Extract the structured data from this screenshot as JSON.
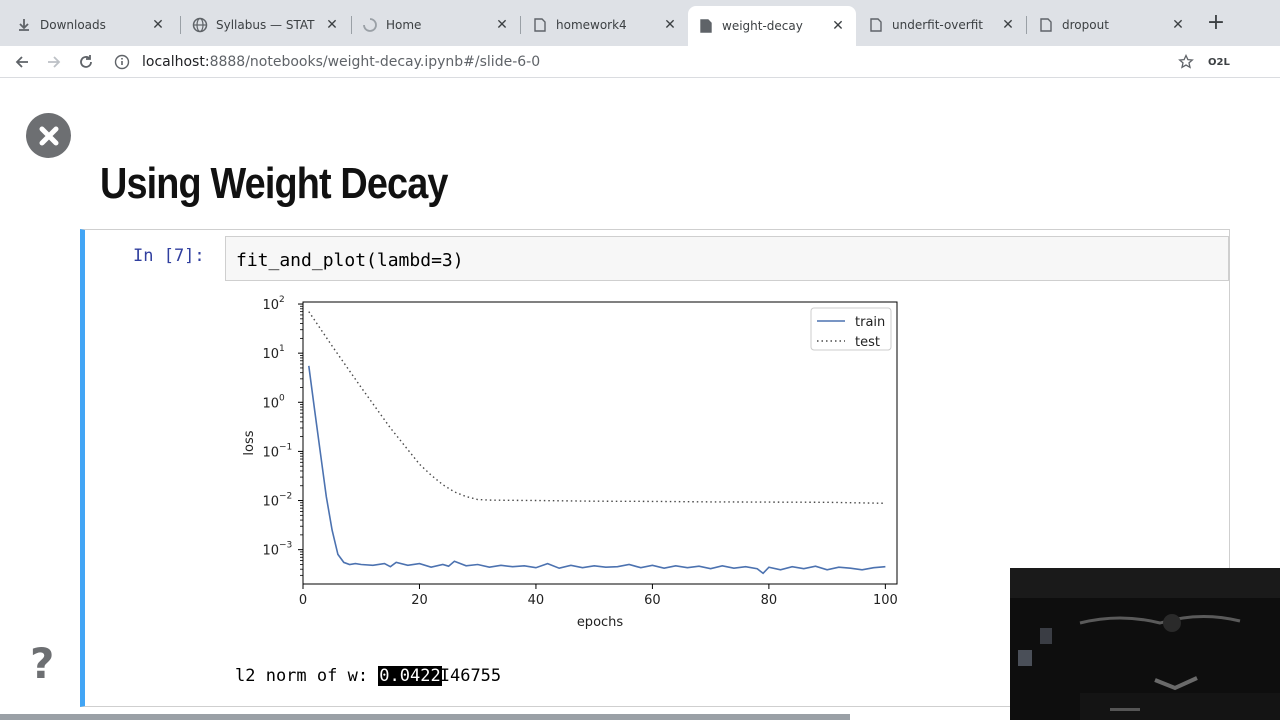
{
  "browser": {
    "tabs": [
      {
        "title": "Downloads",
        "icon": "download-icon",
        "active": false
      },
      {
        "title": "Syllabus — STAT",
        "icon": "globe-icon",
        "active": false
      },
      {
        "title": "Home",
        "icon": "loading-icon",
        "active": false
      },
      {
        "title": "homework4",
        "icon": "notebook-icon",
        "active": false
      },
      {
        "title": "weight-decay",
        "icon": "notebook-icon",
        "active": true
      },
      {
        "title": "underfit-overfit",
        "icon": "notebook-icon",
        "active": false
      },
      {
        "title": "dropout",
        "icon": "notebook-icon",
        "active": false
      }
    ],
    "url_host": "localhost:",
    "url_path": "8888/notebooks/weight-decay.ipynb#/slide-6-0",
    "extension_label": "O2L"
  },
  "slide": {
    "title": "Using Weight Decay",
    "prompt": "In [7]:",
    "code": "fit_and_plot(lambd=3)",
    "output_prefix": "l2 norm of w: ",
    "output_selected": "0.0422",
    "output_rest": "46755",
    "output_cursor": "I"
  },
  "chart_data": {
    "type": "line",
    "xlabel": "epochs",
    "ylabel": "loss",
    "yscale": "log",
    "xlim": [
      0,
      102
    ],
    "ylim": [
      0.0002,
      110
    ],
    "xticks": [
      0,
      20,
      40,
      60,
      80,
      100
    ],
    "yticks": [
      0.001,
      0.01,
      0.1,
      1,
      10,
      100
    ],
    "ytick_labels": [
      [
        "10",
        "−3"
      ],
      [
        "10",
        "−2"
      ],
      [
        "10",
        "−1"
      ],
      [
        "10",
        "0"
      ],
      [
        "10",
        "1"
      ],
      [
        "10",
        "2"
      ]
    ],
    "legend_position": "top-right",
    "series": [
      {
        "name": "train",
        "style": "solid",
        "color": "#4c72b0",
        "x": [
          1,
          2,
          3,
          4,
          5,
          6,
          7,
          8,
          9,
          10,
          12,
          14,
          15,
          16,
          18,
          20,
          22,
          24,
          25,
          26,
          28,
          30,
          32,
          34,
          36,
          38,
          40,
          42,
          44,
          46,
          48,
          50,
          52,
          54,
          56,
          58,
          60,
          62,
          64,
          66,
          68,
          70,
          72,
          74,
          76,
          78,
          79,
          80,
          82,
          84,
          86,
          88,
          90,
          92,
          94,
          96,
          98,
          100
        ],
        "y": [
          5.5,
          0.7,
          0.09,
          0.012,
          0.0025,
          0.0008,
          0.00055,
          0.0005,
          0.00052,
          0.0005,
          0.00048,
          0.00052,
          0.00045,
          0.00055,
          0.00048,
          0.00052,
          0.00044,
          0.0005,
          0.00046,
          0.00058,
          0.00047,
          0.0005,
          0.00044,
          0.00048,
          0.00045,
          0.00047,
          0.00043,
          0.00052,
          0.00042,
          0.00048,
          0.00043,
          0.00047,
          0.00044,
          0.00045,
          0.0005,
          0.00043,
          0.00048,
          0.00042,
          0.00047,
          0.00043,
          0.00046,
          0.00041,
          0.00047,
          0.00042,
          0.00045,
          0.00041,
          0.00033,
          0.00044,
          0.00039,
          0.00045,
          0.00041,
          0.00046,
          0.00039,
          0.00044,
          0.00042,
          0.00039,
          0.00043,
          0.00045
        ]
      },
      {
        "name": "test",
        "style": "dotted",
        "color": "#4a4a4a",
        "x": [
          1,
          5,
          10,
          15,
          20,
          22,
          24,
          26,
          28,
          30,
          32,
          35,
          40,
          50,
          60,
          70,
          80,
          90,
          95,
          100
        ],
        "y": [
          70,
          14,
          2,
          0.3,
          0.055,
          0.033,
          0.021,
          0.015,
          0.012,
          0.0105,
          0.0102,
          0.0101,
          0.01,
          0.0097,
          0.0096,
          0.0094,
          0.0093,
          0.0092,
          0.009,
          0.0088
        ]
      }
    ]
  }
}
